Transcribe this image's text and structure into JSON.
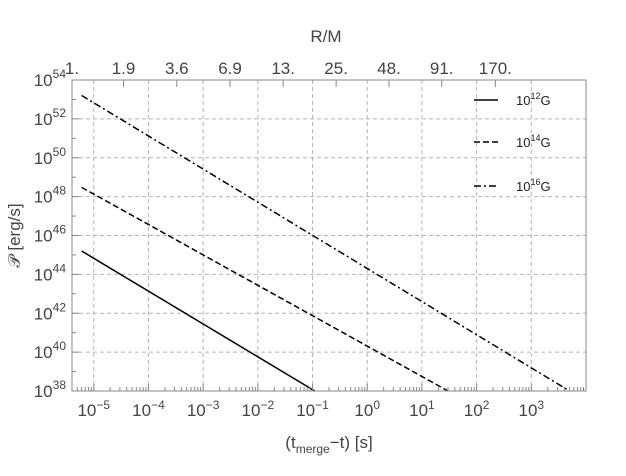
{
  "chart_data": {
    "type": "line",
    "scale": {
      "x": "log10",
      "y": "log10"
    },
    "xlabel_parts": {
      "open": "(",
      "t": "t",
      "sub": "merge",
      "rest": "−t) [s]"
    },
    "ylabel": "𝒫 [erg/s]",
    "top_axis_label": "R/M",
    "xlim": [
      4e-06,
      10000
    ],
    "ylim": [
      1e+38,
      1e+54
    ],
    "x_ticks": [
      {
        "exp": "-5",
        "value": 1e-05
      },
      {
        "exp": "-4",
        "value": 0.0001
      },
      {
        "exp": "-3",
        "value": 0.001
      },
      {
        "exp": "-2",
        "value": 0.01
      },
      {
        "exp": "-1",
        "value": 0.1
      },
      {
        "exp": "0",
        "value": 1
      },
      {
        "exp": "1",
        "value": 10
      },
      {
        "exp": "2",
        "value": 100
      },
      {
        "exp": "3",
        "value": 1000
      }
    ],
    "y_ticks": [
      {
        "exp": "38",
        "value": 1e+38
      },
      {
        "exp": "40",
        "value": 1e+40
      },
      {
        "exp": "42",
        "value": 1e+42
      },
      {
        "exp": "44",
        "value": 1e+44
      },
      {
        "exp": "46",
        "value": 1e+46
      },
      {
        "exp": "48",
        "value": 1e+48
      },
      {
        "exp": "50",
        "value": 1e+50
      },
      {
        "exp": "52",
        "value": 1e+52
      },
      {
        "exp": "54",
        "value": 1e+54
      }
    ],
    "top_ticks": [
      {
        "label": "1.",
        "x": 4e-06
      },
      {
        "label": "1.9",
        "x": 3.5e-05
      },
      {
        "label": "3.6",
        "x": 0.00033
      },
      {
        "label": "6.9",
        "x": 0.0031
      },
      {
        "label": "13.",
        "x": 0.029
      },
      {
        "label": "25.",
        "x": 0.27
      },
      {
        "label": "48.",
        "x": 2.5
      },
      {
        "label": "91.",
        "x": 23
      },
      {
        "label": "170.",
        "x": 220
      }
    ],
    "series": [
      {
        "name_base": "10",
        "name_exp": "12",
        "name_unit": "G",
        "dash": "solid",
        "x": [
          6e-06,
          0.11
        ],
        "y": [
          1.6e+45,
          1e+38
        ]
      },
      {
        "name_base": "10",
        "name_exp": "14",
        "name_unit": "G",
        "dash": "dashed",
        "x": [
          6e-06,
          30
        ],
        "y": [
          3e+48,
          1e+38
        ]
      },
      {
        "name_base": "10",
        "name_exp": "16",
        "name_unit": "G",
        "dash": "dashdot",
        "x": [
          6e-06,
          5000
        ],
        "y": [
          1.6e+53,
          1e+38
        ]
      }
    ],
    "grid": true,
    "legend_position": "top-right"
  }
}
